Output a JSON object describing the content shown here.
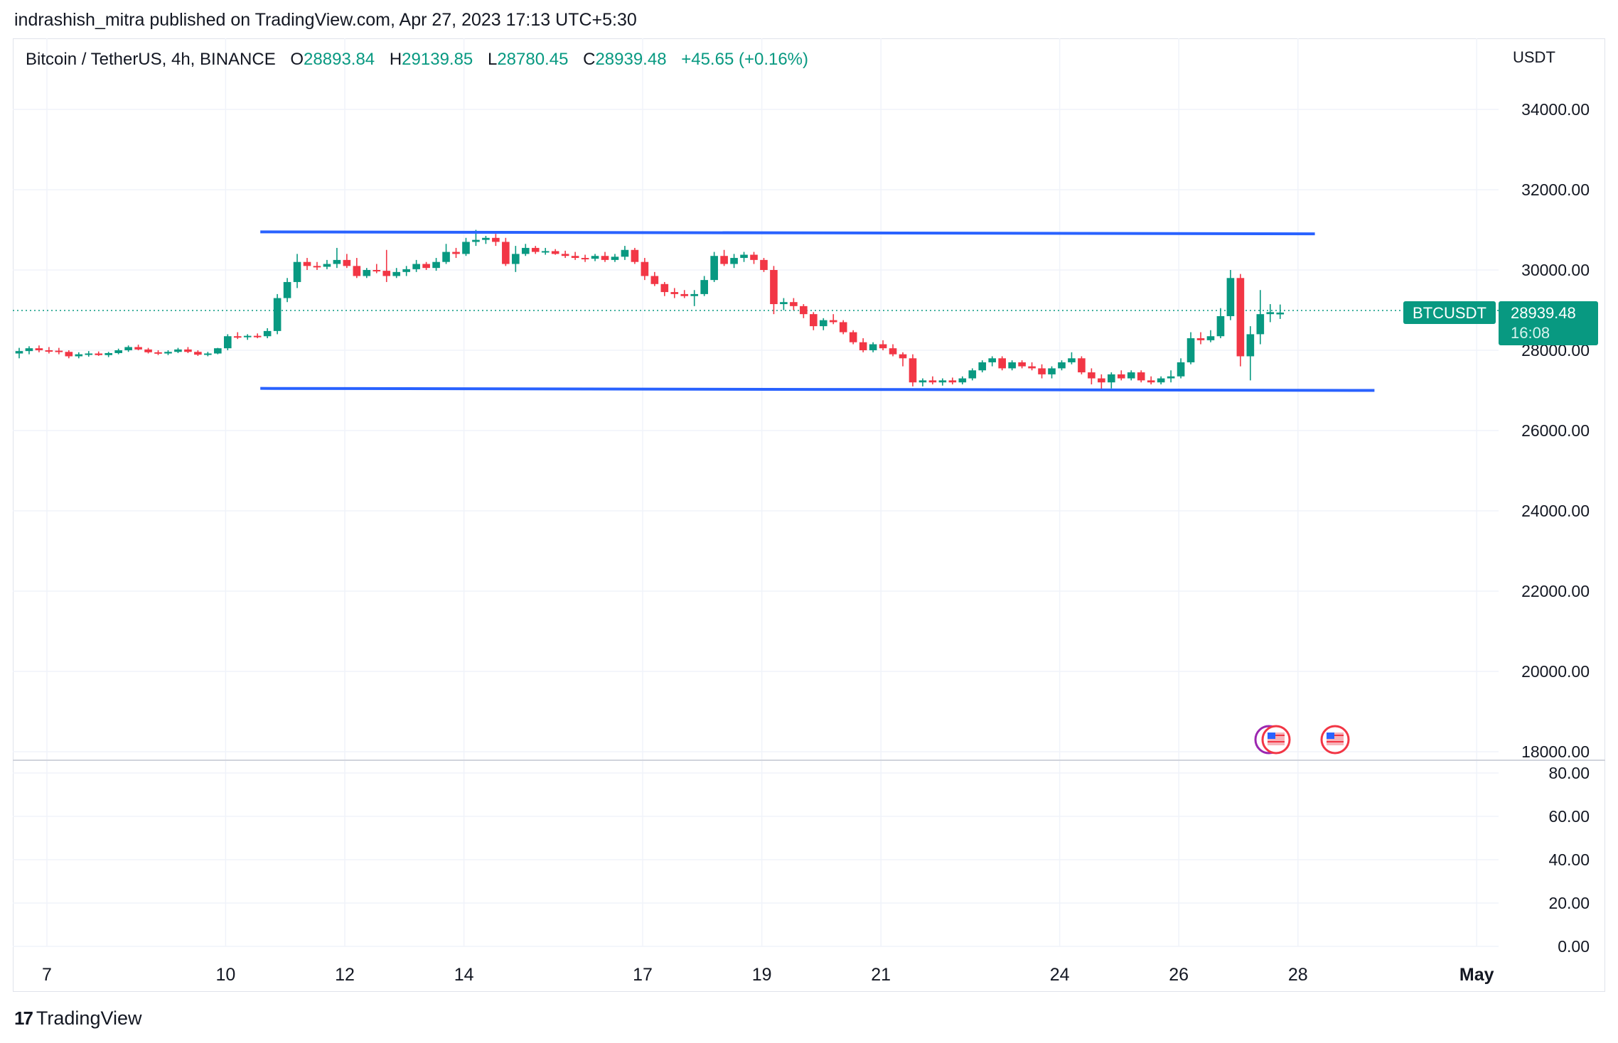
{
  "header": {
    "published": "indrashish_mitra published on TradingView.com, Apr 27, 2023 17:13 UTC+5:30"
  },
  "legend": {
    "symbol": "Bitcoin / TetherUS, 4h, BINANCE",
    "o_label": "O",
    "o_value": "28893.84",
    "h_label": "H",
    "h_value": "29139.85",
    "l_label": "L",
    "l_value": "28780.45",
    "c_label": "C",
    "c_value": "28939.48",
    "change": "+45.65 (+0.16%)"
  },
  "price_axis": {
    "unit": "USDT",
    "ticks": [
      "34000.00",
      "32000.00",
      "30000.00",
      "28000.00",
      "26000.00",
      "24000.00",
      "22000.00",
      "20000.00",
      "18000.00"
    ]
  },
  "indicator_axis": {
    "ticks": [
      "80.00",
      "60.00",
      "40.00",
      "20.00",
      "0.00"
    ]
  },
  "time_axis": {
    "ticks": [
      "7",
      "10",
      "12",
      "14",
      "17",
      "19",
      "21",
      "24",
      "26",
      "28",
      "May"
    ]
  },
  "last_price": {
    "symbol_label": "BTCUSDT",
    "price": "28939.48",
    "countdown": "16:08"
  },
  "footer": {
    "brand": "TradingView",
    "logo": "17"
  },
  "colors": {
    "up": "#089981",
    "down": "#f23645",
    "trendline": "#2962ff",
    "grid": "#f0f3fa",
    "text": "#131722"
  },
  "event_markers": [
    {
      "icon": "us-flag-icon",
      "stacked": true
    },
    {
      "icon": "us-flag-icon",
      "stacked": false
    }
  ],
  "chart_data": {
    "type": "candlestick",
    "title": "Bitcoin / TetherUS, 4h, BINANCE",
    "ylabel": "USDT",
    "ylim": [
      17800,
      35000
    ],
    "grid": true,
    "x_start": "Apr 7",
    "interval": "4h",
    "candles": [
      [
        27920,
        28060,
        27800,
        27980
      ],
      [
        27980,
        28100,
        27900,
        28050
      ],
      [
        28050,
        28120,
        27950,
        28000
      ],
      [
        28000,
        28080,
        27920,
        27990
      ],
      [
        27990,
        28060,
        27900,
        27960
      ],
      [
        27960,
        28000,
        27800,
        27850
      ],
      [
        27850,
        27950,
        27800,
        27900
      ],
      [
        27900,
        27980,
        27840,
        27920
      ],
      [
        27920,
        27970,
        27860,
        27880
      ],
      [
        27880,
        27960,
        27830,
        27930
      ],
      [
        27930,
        28040,
        27900,
        28000
      ],
      [
        28000,
        28120,
        27960,
        28080
      ],
      [
        28080,
        28140,
        28000,
        28020
      ],
      [
        28020,
        28060,
        27920,
        27950
      ],
      [
        27950,
        28000,
        27880,
        27920
      ],
      [
        27920,
        28000,
        27880,
        27960
      ],
      [
        27960,
        28060,
        27930,
        28020
      ],
      [
        28020,
        28080,
        27930,
        27960
      ],
      [
        27960,
        28000,
        27860,
        27890
      ],
      [
        27890,
        27960,
        27850,
        27920
      ],
      [
        27920,
        28060,
        27900,
        28050
      ],
      [
        28050,
        28400,
        28000,
        28350
      ],
      [
        28350,
        28450,
        28280,
        28330
      ],
      [
        28330,
        28400,
        28260,
        28360
      ],
      [
        28360,
        28420,
        28300,
        28350
      ],
      [
        28350,
        28550,
        28300,
        28480
      ],
      [
        28480,
        29400,
        28400,
        29300
      ],
      [
        29300,
        29800,
        29200,
        29700
      ],
      [
        29700,
        30400,
        29550,
        30200
      ],
      [
        30200,
        30300,
        30000,
        30100
      ],
      [
        30100,
        30200,
        30000,
        30080
      ],
      [
        30080,
        30250,
        30020,
        30150
      ],
      [
        30150,
        30550,
        30050,
        30250
      ],
      [
        30250,
        30400,
        30050,
        30100
      ],
      [
        30100,
        30300,
        29800,
        29850
      ],
      [
        29850,
        30050,
        29800,
        30000
      ],
      [
        30000,
        30150,
        29920,
        29980
      ],
      [
        29980,
        30500,
        29700,
        29850
      ],
      [
        29850,
        30050,
        29800,
        29950
      ],
      [
        29950,
        30100,
        29850,
        30020
      ],
      [
        30020,
        30250,
        29950,
        30150
      ],
      [
        30150,
        30200,
        30000,
        30050
      ],
      [
        30050,
        30300,
        29980,
        30200
      ],
      [
        30200,
        30650,
        30150,
        30450
      ],
      [
        30450,
        30550,
        30300,
        30400
      ],
      [
        30400,
        30800,
        30350,
        30700
      ],
      [
        30700,
        31000,
        30600,
        30750
      ],
      [
        30750,
        30850,
        30650,
        30800
      ],
      [
        30800,
        30900,
        30600,
        30700
      ],
      [
        30700,
        30800,
        30100,
        30150
      ],
      [
        30150,
        30600,
        29950,
        30400
      ],
      [
        30400,
        30650,
        30350,
        30550
      ],
      [
        30550,
        30600,
        30400,
        30450
      ],
      [
        30450,
        30550,
        30380,
        30470
      ],
      [
        30470,
        30520,
        30380,
        30400
      ],
      [
        30400,
        30480,
        30300,
        30350
      ],
      [
        30350,
        30450,
        30250,
        30300
      ],
      [
        30300,
        30380,
        30200,
        30280
      ],
      [
        30280,
        30400,
        30220,
        30350
      ],
      [
        30350,
        30450,
        30200,
        30250
      ],
      [
        30250,
        30400,
        30200,
        30330
      ],
      [
        30330,
        30600,
        30250,
        30500
      ],
      [
        30500,
        30550,
        30150,
        30200
      ],
      [
        30200,
        30300,
        29750,
        29850
      ],
      [
        29850,
        29950,
        29600,
        29650
      ],
      [
        29650,
        29700,
        29350,
        29450
      ],
      [
        29450,
        29550,
        29300,
        29400
      ],
      [
        29400,
        29500,
        29300,
        29350
      ],
      [
        29350,
        29500,
        29100,
        29400
      ],
      [
        29400,
        29850,
        29350,
        29750
      ],
      [
        29750,
        30450,
        29700,
        30350
      ],
      [
        30350,
        30500,
        30100,
        30150
      ],
      [
        30150,
        30400,
        30050,
        30300
      ],
      [
        30300,
        30450,
        30200,
        30380
      ],
      [
        30380,
        30450,
        30150,
        30250
      ],
      [
        30250,
        30300,
        29950,
        30000
      ],
      [
        30000,
        30100,
        28900,
        29150
      ],
      [
        29150,
        29300,
        29000,
        29200
      ],
      [
        29200,
        29300,
        29000,
        29100
      ],
      [
        29100,
        29150,
        28800,
        28900
      ],
      [
        28900,
        28950,
        28500,
        28600
      ],
      [
        28600,
        28800,
        28500,
        28750
      ],
      [
        28750,
        28900,
        28650,
        28700
      ],
      [
        28700,
        28750,
        28400,
        28450
      ],
      [
        28450,
        28500,
        28150,
        28200
      ],
      [
        28200,
        28300,
        27950,
        28000
      ],
      [
        28000,
        28200,
        27950,
        28150
      ],
      [
        28150,
        28250,
        28000,
        28050
      ],
      [
        28050,
        28150,
        27850,
        27900
      ],
      [
        27900,
        27950,
        27600,
        27800
      ],
      [
        27800,
        27900,
        27100,
        27200
      ],
      [
        27200,
        27300,
        27100,
        27250
      ],
      [
        27250,
        27350,
        27150,
        27200
      ],
      [
        27200,
        27300,
        27120,
        27250
      ],
      [
        27250,
        27320,
        27150,
        27200
      ],
      [
        27200,
        27350,
        27150,
        27300
      ],
      [
        27300,
        27550,
        27250,
        27500
      ],
      [
        27500,
        27750,
        27450,
        27700
      ],
      [
        27700,
        27850,
        27600,
        27800
      ],
      [
        27800,
        27850,
        27500,
        27550
      ],
      [
        27550,
        27750,
        27500,
        27700
      ],
      [
        27700,
        27750,
        27550,
        27600
      ],
      [
        27600,
        27700,
        27500,
        27550
      ],
      [
        27550,
        27650,
        27300,
        27400
      ],
      [
        27400,
        27600,
        27300,
        27550
      ],
      [
        27550,
        27750,
        27500,
        27700
      ],
      [
        27700,
        27950,
        27650,
        27800
      ],
      [
        27800,
        27850,
        27400,
        27450
      ],
      [
        27450,
        27550,
        27150,
        27300
      ],
      [
        27300,
        27400,
        27000,
        27200
      ],
      [
        27200,
        27450,
        27050,
        27400
      ],
      [
        27400,
        27500,
        27250,
        27300
      ],
      [
        27300,
        27500,
        27250,
        27450
      ],
      [
        27450,
        27500,
        27200,
        27250
      ],
      [
        27250,
        27350,
        27150,
        27200
      ],
      [
        27200,
        27350,
        27150,
        27300
      ],
      [
        27300,
        27500,
        27200,
        27350
      ],
      [
        27350,
        27800,
        27300,
        27700
      ],
      [
        27700,
        28450,
        27650,
        28300
      ],
      [
        28300,
        28450,
        28150,
        28250
      ],
      [
        28250,
        28500,
        28200,
        28350
      ],
      [
        28350,
        29050,
        28300,
        28850
      ],
      [
        28850,
        30000,
        28750,
        29800
      ],
      [
        29800,
        29900,
        27600,
        27850
      ],
      [
        27850,
        28600,
        27250,
        28400
      ],
      [
        28400,
        29500,
        28150,
        28900
      ],
      [
        28900,
        29150,
        28700,
        28950
      ],
      [
        28893.84,
        29139.85,
        28780.45,
        28939.48
      ]
    ],
    "trendlines": [
      {
        "from": [
          "Apr 11",
          30950
        ],
        "to": [
          "Apr 29",
          30900
        ]
      },
      {
        "from": [
          "Apr 11",
          27050
        ],
        "to": [
          "Apr 30",
          27000
        ]
      }
    ],
    "indicator": {
      "ylim": [
        0,
        80
      ]
    }
  }
}
